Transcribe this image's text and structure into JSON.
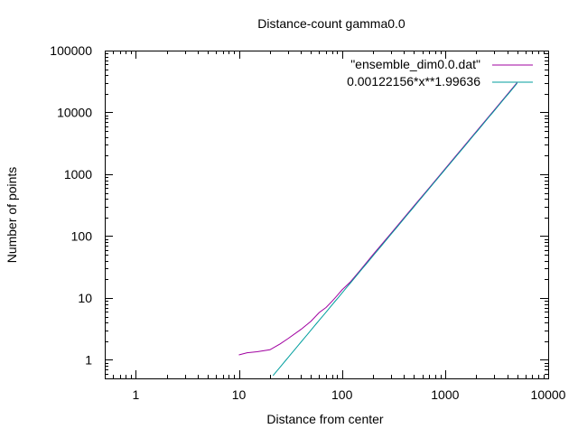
{
  "chart_data": {
    "type": "line",
    "title": "Distance-count gamma0.0",
    "xlabel": "Distance from center",
    "ylabel": "Number of points",
    "x_scale": "log",
    "y_scale": "log",
    "xlim": [
      0.5,
      10000
    ],
    "ylim": [
      0.5,
      100000
    ],
    "x_ticks": [
      {
        "value": 1,
        "label": "1"
      },
      {
        "value": 10,
        "label": "10"
      },
      {
        "value": 100,
        "label": "100"
      },
      {
        "value": 1000,
        "label": "1000"
      },
      {
        "value": 10000,
        "label": "10000"
      }
    ],
    "y_ticks": [
      {
        "value": 1,
        "label": "1"
      },
      {
        "value": 10,
        "label": "10"
      },
      {
        "value": 100,
        "label": "100"
      },
      {
        "value": 1000,
        "label": "1000"
      },
      {
        "value": 10000,
        "label": "10000"
      },
      {
        "value": 100000,
        "label": "100000"
      }
    ],
    "grid": false,
    "legend_position": "top-right",
    "series": [
      {
        "name": "\"ensemble_dim0.0.dat\"",
        "color": "#a000a0",
        "kind": "data",
        "x": [
          10,
          12,
          15,
          20,
          25,
          30,
          40,
          50,
          60,
          70,
          80,
          90,
          100,
          120,
          150,
          200,
          300,
          500,
          700,
          1000,
          1500,
          2000,
          3000,
          5000
        ],
        "y": [
          1.2,
          1.3,
          1.35,
          1.45,
          1.8,
          2.2,
          3.1,
          4.2,
          5.8,
          7.0,
          8.8,
          11,
          13.5,
          18,
          28,
          50,
          112,
          310,
          600,
          1220,
          2750,
          4880,
          10950,
          30400
        ]
      },
      {
        "name": "0.00122156*x**1.99636",
        "color": "#009e9e",
        "kind": "function",
        "coef": 0.00122156,
        "exponent": 1.99636,
        "x_range": [
          20,
          5000
        ]
      }
    ]
  }
}
